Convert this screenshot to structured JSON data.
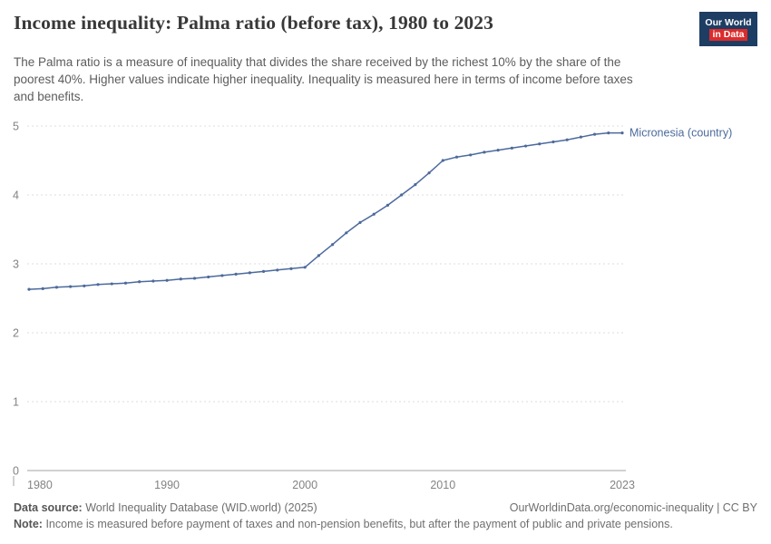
{
  "header": {
    "title": "Income inequality: Palma ratio (before tax), 1980 to 2023",
    "logo": {
      "line1": "Our World",
      "line2": "in Data"
    }
  },
  "subtitle": "The Palma ratio is a measure of inequality that divides the share received by the richest 10% by the share of the poorest 40%. Higher values indicate higher inequality. Inequality is measured here in terms of income before taxes and benefits.",
  "chart_data": {
    "type": "line",
    "title": "Income inequality: Palma ratio (before tax), 1980 to 2023",
    "xlabel": "",
    "ylabel": "",
    "xlim": [
      1980,
      2023
    ],
    "ylim": [
      0,
      5
    ],
    "xticks": [
      1980,
      1990,
      2000,
      2010,
      2023
    ],
    "yticks": [
      0,
      1,
      2,
      3,
      4,
      5
    ],
    "grid": "horizontal-dashed",
    "legend_position": "end-of-line-label",
    "series": [
      {
        "name": "Micronesia (country)",
        "color": "#4C6A9C",
        "x": [
          1980,
          1981,
          1982,
          1983,
          1984,
          1985,
          1986,
          1987,
          1988,
          1989,
          1990,
          1991,
          1992,
          1993,
          1994,
          1995,
          1996,
          1997,
          1998,
          1999,
          2000,
          2001,
          2002,
          2003,
          2004,
          2005,
          2006,
          2007,
          2008,
          2009,
          2010,
          2011,
          2012,
          2013,
          2014,
          2015,
          2016,
          2017,
          2018,
          2019,
          2020,
          2021,
          2022,
          2023
        ],
        "values": [
          2.63,
          2.64,
          2.66,
          2.67,
          2.68,
          2.7,
          2.71,
          2.72,
          2.74,
          2.75,
          2.76,
          2.78,
          2.79,
          2.81,
          2.83,
          2.85,
          2.87,
          2.89,
          2.91,
          2.93,
          2.95,
          3.12,
          3.28,
          3.45,
          3.6,
          3.72,
          3.85,
          4.0,
          4.15,
          4.32,
          4.5,
          4.55,
          4.58,
          4.62,
          4.65,
          4.68,
          4.71,
          4.74,
          4.77,
          4.8,
          4.84,
          4.88,
          4.9,
          4.9
        ]
      }
    ]
  },
  "footer": {
    "data_source_label": "Data source:",
    "data_source": "World Inequality Database (WID.world) (2025)",
    "attribution": "OurWorldinData.org/economic-inequality | CC BY",
    "note_label": "Note:",
    "note": "Income is measured before payment of taxes and non-pension benefits, but after the payment of public and private pensions."
  }
}
